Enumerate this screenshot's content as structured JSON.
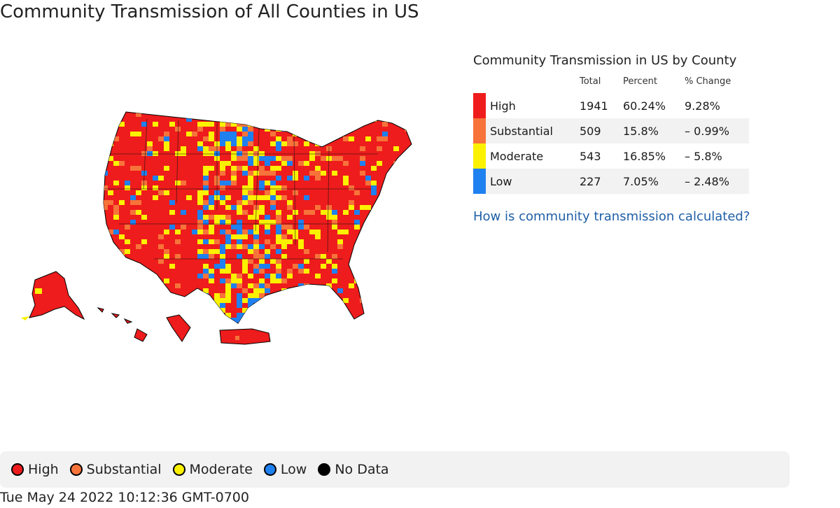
{
  "title": "Community Transmission of All Counties in US",
  "colors": {
    "high": "#ee1c1c",
    "substantial": "#f7733a",
    "moderate": "#fbf100",
    "low": "#1f80f0",
    "no_data": "#000000",
    "link": "#1f5fa6"
  },
  "table": {
    "title": "Community Transmission in US by County",
    "headers": {
      "level": "",
      "total": "Total",
      "percent": "Percent",
      "change": "% Change"
    },
    "rows": [
      {
        "level": "High",
        "total": "1941",
        "percent": "60.24%",
        "change": "9.28%",
        "color": "#ee1c1c"
      },
      {
        "level": "Substantial",
        "total": "509",
        "percent": "15.8%",
        "change": "– 0.99%",
        "color": "#f7733a"
      },
      {
        "level": "Moderate",
        "total": "543",
        "percent": "16.85%",
        "change": "– 5.8%",
        "color": "#fbf100"
      },
      {
        "level": "Low",
        "total": "227",
        "percent": "7.05%",
        "change": "– 2.48%",
        "color": "#1f80f0"
      }
    ]
  },
  "link_text": "How is community transmission calculated?",
  "legend": [
    {
      "label": "High",
      "color": "#ee1c1c"
    },
    {
      "label": "Substantial",
      "color": "#f7733a"
    },
    {
      "label": "Moderate",
      "color": "#fbf100"
    },
    {
      "label": "Low",
      "color": "#1f80f0"
    },
    {
      "label": "No Data",
      "color": "#000000"
    }
  ],
  "timestamp": "Tue May 24 2022 10:12:36 GMT-0700"
}
